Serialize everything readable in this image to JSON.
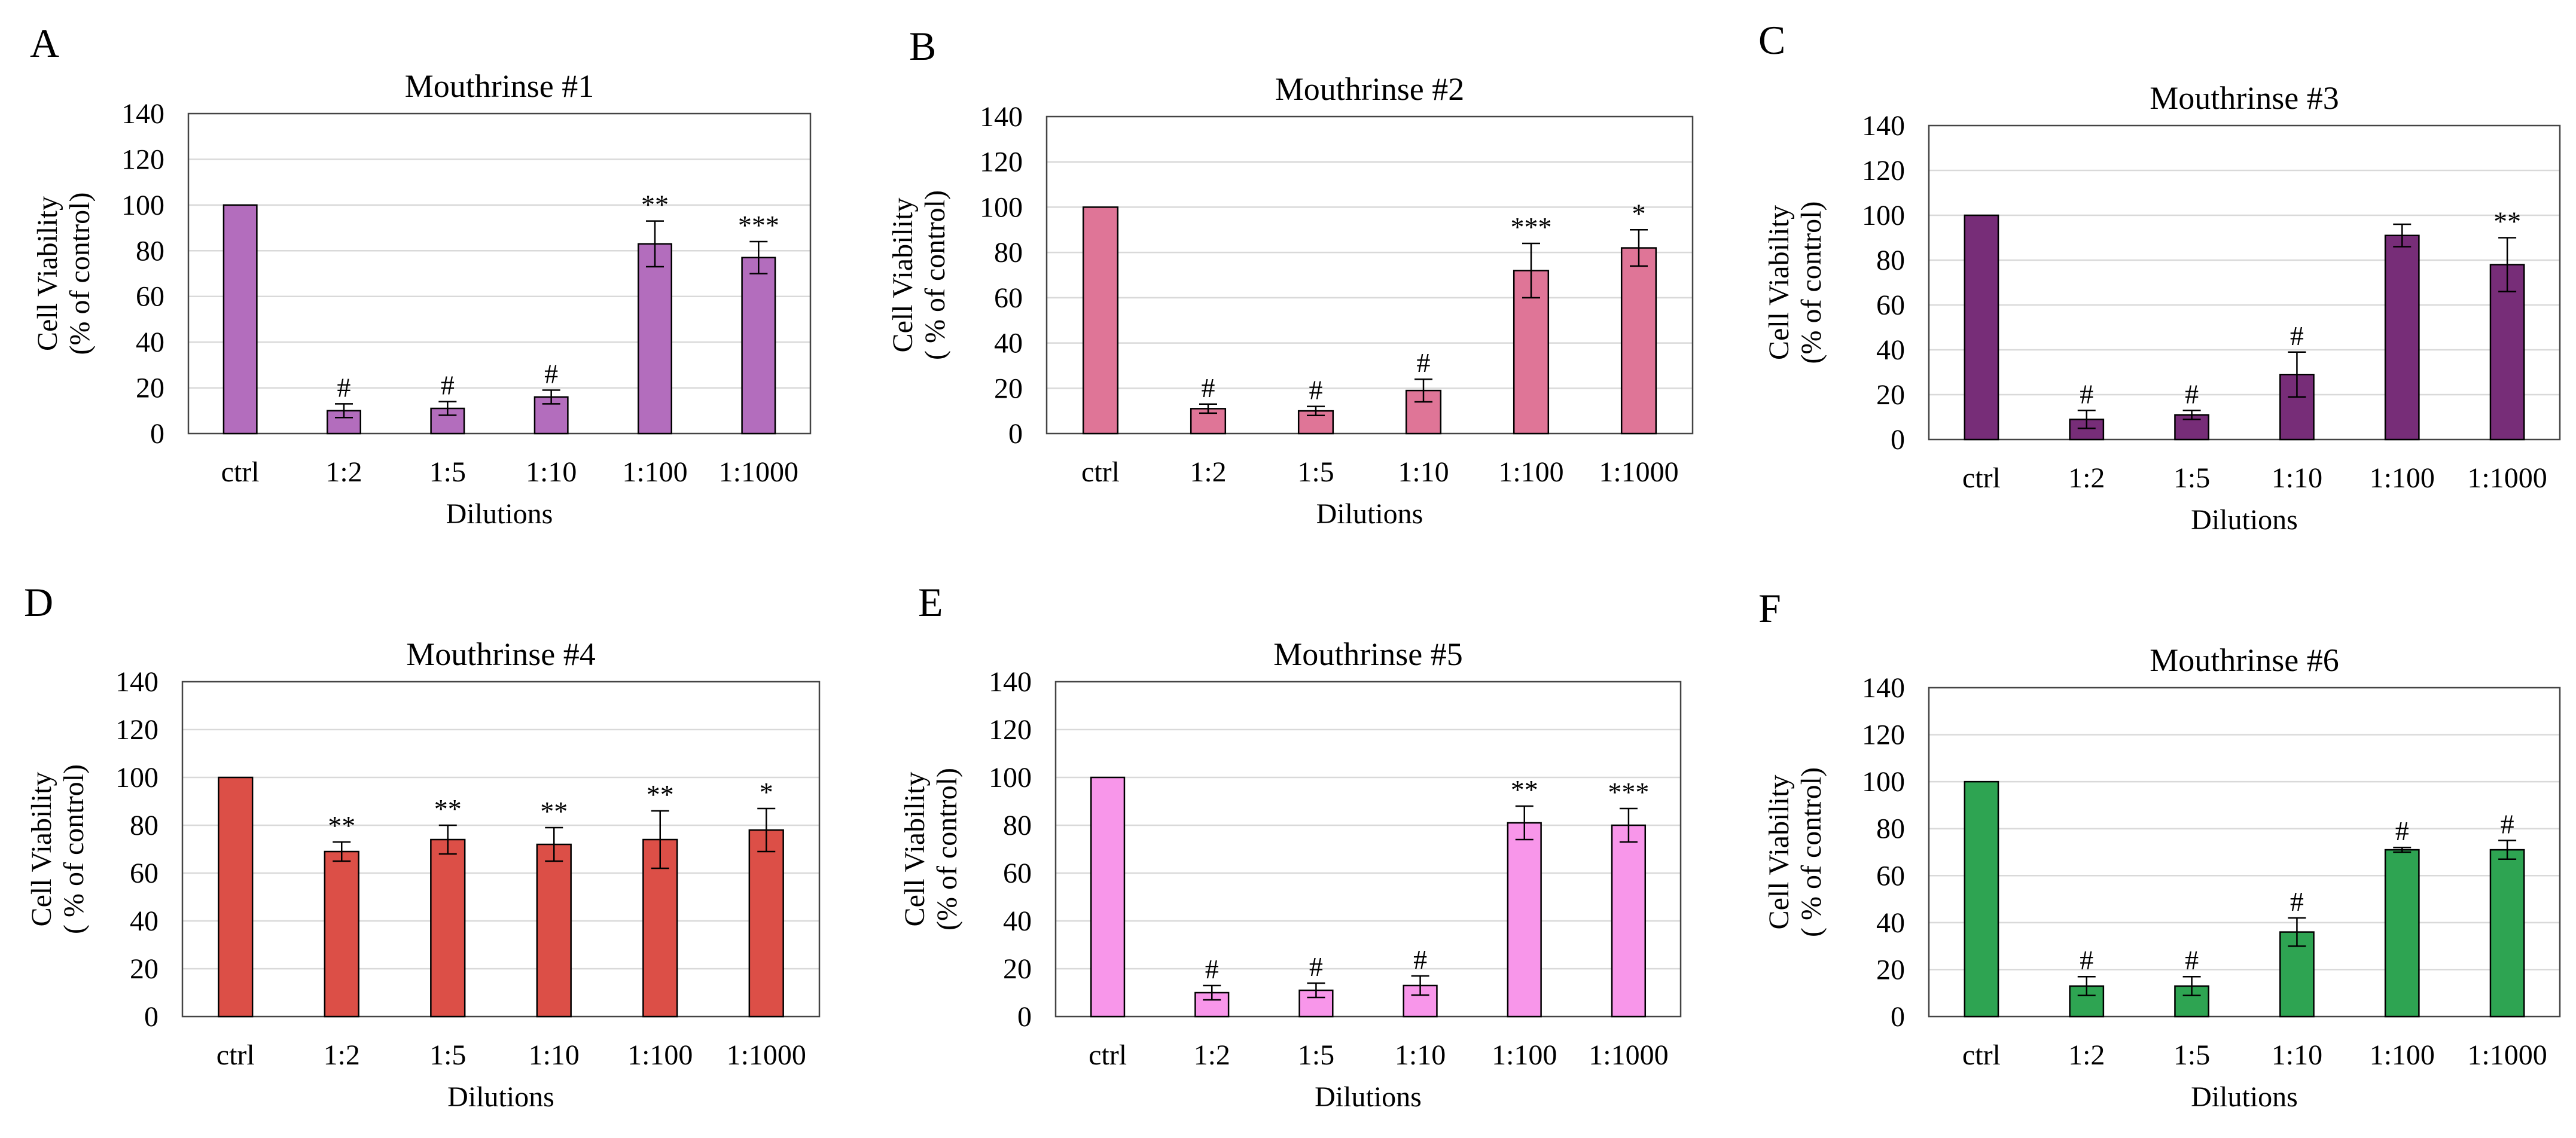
{
  "chart_data": [
    {
      "panel": "A",
      "type": "bar",
      "title": "Mouthrinse #1",
      "xlabel": "Dilutions",
      "ylabel": [
        "Cell Viability",
        "(% of control)"
      ],
      "ylim": [
        0,
        140
      ],
      "yticks": [
        0,
        20,
        40,
        60,
        80,
        100,
        120,
        140
      ],
      "grid": true,
      "categories": [
        "ctrl",
        "1:2",
        "1:5",
        "1:10",
        "1:100",
        "1:1000"
      ],
      "values": [
        100,
        10,
        11,
        16,
        83,
        77
      ],
      "errors": [
        0,
        3,
        3,
        3,
        10,
        7
      ],
      "significance": [
        "",
        "#",
        "#",
        "#",
        "**",
        "***"
      ],
      "color": "#b36dbd"
    },
    {
      "panel": "B",
      "type": "bar",
      "title": "Mouthrinse #2",
      "xlabel": "Dilutions",
      "ylabel": [
        "Cell Viability",
        "( % of control)"
      ],
      "ylim": [
        0,
        140
      ],
      "yticks": [
        0,
        20,
        40,
        60,
        80,
        100,
        120,
        140
      ],
      "grid": true,
      "categories": [
        "ctrl",
        "1:2",
        "1:5",
        "1:10",
        "1:100",
        "1:1000"
      ],
      "values": [
        100,
        11,
        10,
        19,
        72,
        82
      ],
      "errors": [
        0,
        2,
        2,
        5,
        12,
        8
      ],
      "significance": [
        "",
        "#",
        "#",
        "#",
        "***",
        "*"
      ],
      "color": "#df7597"
    },
    {
      "panel": "C",
      "type": "bar",
      "title": "Mouthrinse #3",
      "xlabel": "Dilutions",
      "ylabel": [
        "Cell Viability",
        "(% of control)"
      ],
      "ylim": [
        0,
        140
      ],
      "yticks": [
        0,
        20,
        40,
        60,
        80,
        100,
        120,
        140
      ],
      "grid": true,
      "categories": [
        "ctrl",
        "1:2",
        "1:5",
        "1:10",
        "1:100",
        "1:1000"
      ],
      "values": [
        100,
        9,
        11,
        29,
        91,
        78
      ],
      "errors": [
        0,
        4,
        2,
        10,
        5,
        12
      ],
      "significance": [
        "",
        "#",
        "#",
        "#",
        "",
        "**"
      ],
      "color": "#772d78"
    },
    {
      "panel": "D",
      "type": "bar",
      "title": "Mouthrinse #4",
      "xlabel": "Dilutions",
      "ylabel": [
        "Cell Viability",
        "( % of control)"
      ],
      "ylim": [
        0,
        140
      ],
      "yticks": [
        0,
        20,
        40,
        60,
        80,
        100,
        120,
        140
      ],
      "grid": true,
      "categories": [
        "ctrl",
        "1:2",
        "1:5",
        "1:10",
        "1:100",
        "1:1000"
      ],
      "values": [
        100,
        69,
        74,
        72,
        74,
        78
      ],
      "errors": [
        0,
        4,
        6,
        7,
        12,
        9
      ],
      "significance": [
        "",
        "**",
        "**",
        "**",
        "**",
        "*"
      ],
      "color": "#dc4f47"
    },
    {
      "panel": "E",
      "type": "bar",
      "title": "Mouthrinse #5",
      "xlabel": "Dilutions",
      "ylabel": [
        "Cell Viability",
        "(% of control)"
      ],
      "ylim": [
        0,
        140
      ],
      "yticks": [
        0,
        20,
        40,
        60,
        80,
        100,
        120,
        140
      ],
      "grid": true,
      "categories": [
        "ctrl",
        "1:2",
        "1:5",
        "1:10",
        "1:100",
        "1:1000"
      ],
      "values": [
        100,
        10,
        11,
        13,
        81,
        80
      ],
      "errors": [
        0,
        3,
        3,
        4,
        7,
        7
      ],
      "significance": [
        "",
        "#",
        "#",
        "#",
        "**",
        "***"
      ],
      "color": "#f896ea"
    },
    {
      "panel": "F",
      "type": "bar",
      "title": "Mouthrinse #6",
      "xlabel": "Dilutions",
      "ylabel": [
        "Cell Viability",
        "( % of control)"
      ],
      "ylim": [
        0,
        140
      ],
      "yticks": [
        0,
        20,
        40,
        60,
        80,
        100,
        120,
        140
      ],
      "grid": true,
      "categories": [
        "ctrl",
        "1:2",
        "1:5",
        "1:10",
        "1:100",
        "1:1000"
      ],
      "values": [
        100,
        13,
        13,
        36,
        71,
        71
      ],
      "errors": [
        0,
        4,
        4,
        6,
        1,
        4
      ],
      "significance": [
        "",
        "#",
        "#",
        "#",
        "#",
        "#"
      ],
      "color": "#2ea452"
    }
  ]
}
